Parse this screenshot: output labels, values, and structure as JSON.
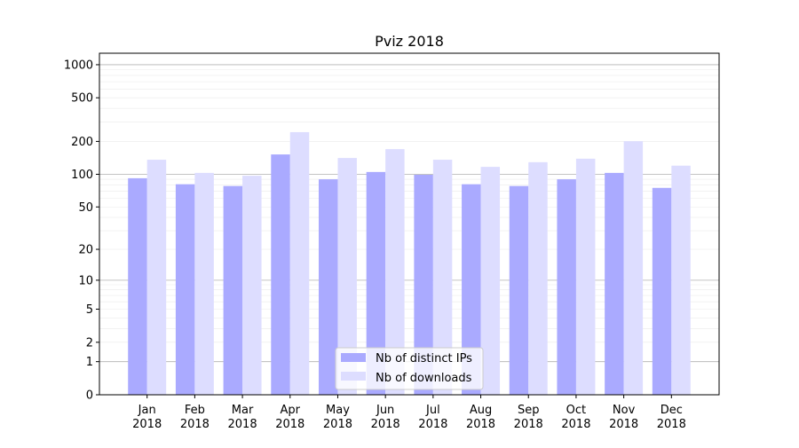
{
  "chart_data": {
    "type": "bar",
    "title": "Pviz 2018",
    "xlabel": "",
    "ylabel": "",
    "y_scale": "symlog (log of value+1)",
    "ylim": [
      0,
      1272
    ],
    "y_ticks": [
      0,
      1,
      2,
      5,
      10,
      20,
      50,
      100,
      200,
      500,
      1000
    ],
    "grid": true,
    "legend_position": "lower center",
    "categories": [
      "Jan\n2018",
      "Feb\n2018",
      "Mar\n2018",
      "Apr\n2018",
      "May\n2018",
      "Jun\n2018",
      "Jul\n2018",
      "Aug\n2018",
      "Sep\n2018",
      "Oct\n2018",
      "Nov\n2018",
      "Dec\n2018"
    ],
    "series": [
      {
        "name": "Nb of distinct IPs",
        "color": "#aaaaff",
        "values": [
          92,
          81,
          78,
          152,
          90,
          105,
          99,
          81,
          78,
          90,
          103,
          75
        ]
      },
      {
        "name": "Nb of downloads",
        "color": "#ddddff",
        "values": [
          136,
          103,
          97,
          243,
          141,
          170,
          136,
          117,
          129,
          139,
          201,
          120
        ]
      }
    ]
  }
}
